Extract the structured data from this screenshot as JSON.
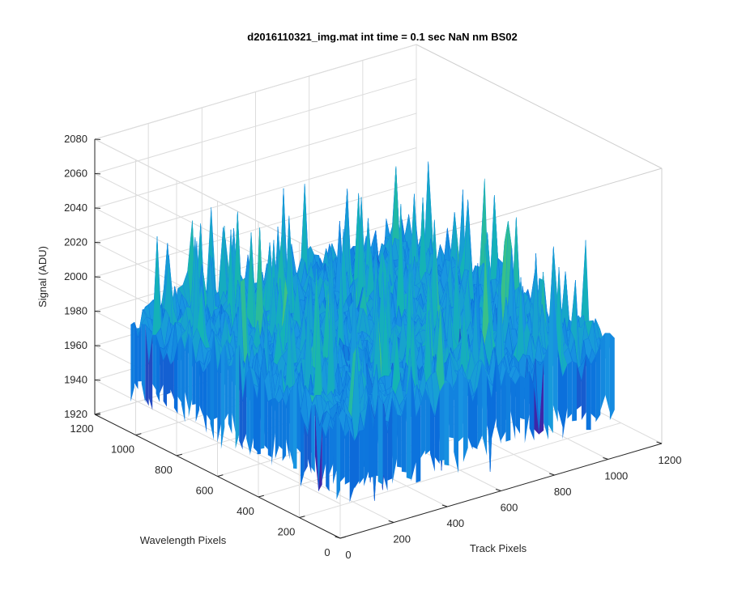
{
  "chart_data": {
    "type": "surface3d",
    "title": "d2016110321_img.mat int time = 0.1 sec  NaN nm BS02",
    "xlabel": "Track Pixels",
    "ylabel": "Wavelength Pixels",
    "zlabel": "Signal (ADU)",
    "xlim": [
      0,
      1200
    ],
    "ylim": [
      0,
      1200
    ],
    "zlim": [
      1920,
      2080
    ],
    "x_ticks": [
      0,
      200,
      400,
      600,
      800,
      1000,
      1200
    ],
    "y_ticks": [
      0,
      200,
      400,
      600,
      800,
      1000,
      1200
    ],
    "z_ticks": [
      1920,
      1940,
      1960,
      1980,
      2000,
      2020,
      2040,
      2060,
      2080
    ],
    "x_tick_labels": [
      "0",
      "200",
      "400",
      "600",
      "800",
      "1000",
      "1200"
    ],
    "y_tick_labels": [
      "0",
      "200",
      "400",
      "600",
      "800",
      "1000",
      "1200"
    ],
    "z_tick_labels": [
      "1920",
      "1940",
      "1960",
      "1980",
      "2000",
      "2020",
      "2040",
      "2060",
      "2080"
    ],
    "surface": {
      "x_range": [
        0,
        1024
      ],
      "y_range": [
        0,
        1024
      ],
      "z_mean": 1985,
      "z_noise_range": [
        1950,
        2035
      ],
      "z_peak": 2072,
      "colormap": "parula"
    },
    "grid": true,
    "box": true
  }
}
